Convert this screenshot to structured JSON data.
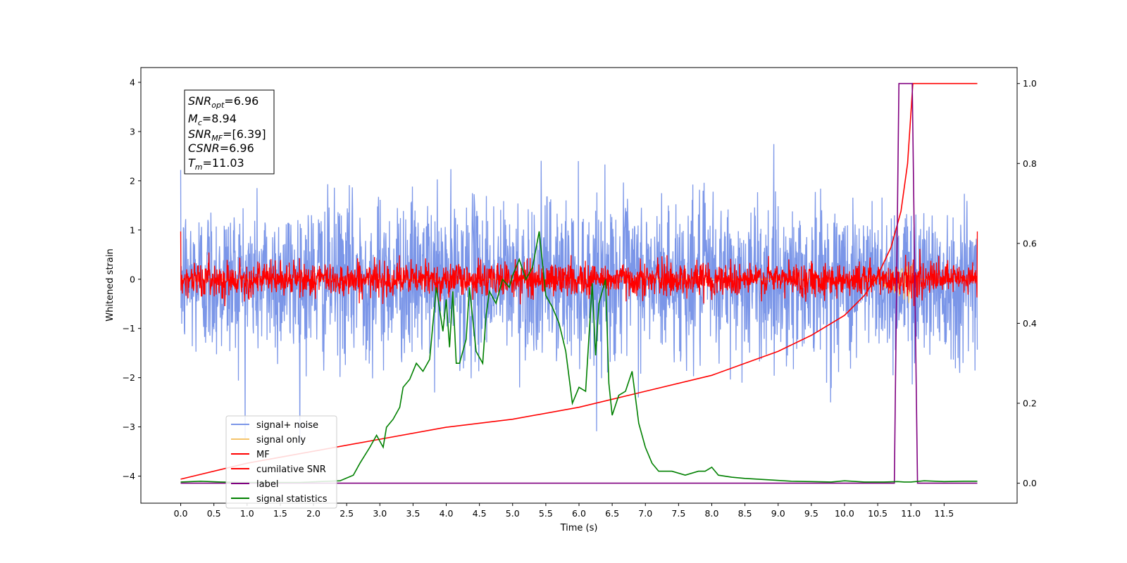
{
  "chart_data": {
    "type": "line",
    "xlabel": "Time (s)",
    "ylabel": "Whitened strain",
    "xlim": [
      -0.6,
      12.6
    ],
    "ylim": [
      -4.55,
      4.3
    ],
    "ylim_right": [
      -0.05,
      1.04
    ],
    "x_ticks": [
      0.0,
      0.5,
      1.0,
      1.5,
      2.0,
      2.5,
      3.0,
      3.5,
      4.0,
      4.5,
      5.0,
      5.5,
      6.0,
      6.5,
      7.0,
      7.5,
      8.0,
      8.5,
      9.0,
      9.5,
      10.0,
      10.5,
      11.0,
      11.5
    ],
    "x_tick_labels": [
      "0.0",
      "0.5",
      "1.0",
      "1.5",
      "2.0",
      "2.5",
      "3.0",
      "3.5",
      "4.0",
      "4.5",
      "5.0",
      "5.5",
      "6.0",
      "6.5",
      "7.0",
      "7.5",
      "8.0",
      "8.5",
      "9.0",
      "9.5",
      "10.0",
      "10.5",
      "11.0",
      "11.5"
    ],
    "y_ticks": [
      -4,
      -3,
      -2,
      -1,
      0,
      1,
      2,
      3,
      4
    ],
    "y_tick_labels": [
      "−4",
      "−3",
      "−2",
      "−1",
      "0",
      "1",
      "2",
      "3",
      "4"
    ],
    "y_right_ticks": [
      0.0,
      0.2,
      0.4,
      0.6,
      0.8,
      1.0
    ],
    "y_right_tick_labels": [
      "0.0",
      "0.2",
      "0.4",
      "0.6",
      "0.8",
      "1.0"
    ],
    "grid": false,
    "legend_position": "lower-left",
    "annotation": [
      {
        "base": "SNR",
        "sub": "opt",
        "value": "=6.96"
      },
      {
        "base": "M",
        "sub": "c",
        "value": "=8.94"
      },
      {
        "base": "SNR",
        "sub": "MF",
        "value": "=[6.39]"
      },
      {
        "base": "CSNR",
        "sub": "",
        "value": "=6.96"
      },
      {
        "base": "T",
        "sub": "m",
        "value": "=11.03"
      }
    ],
    "series": [
      {
        "name": "signal+ noise",
        "color": "#7b96e8",
        "axis": "left",
        "noise_sigma": 0.8,
        "x_range": [
          0.0,
          12.0
        ]
      },
      {
        "name": "signal only",
        "color": "#f5c36b",
        "axis": "left",
        "chirp_start": 10.2,
        "chirp_end": 11.03,
        "peak_amplitude": 0.55
      },
      {
        "name": "MF",
        "color": "#ff0000",
        "axis": "left",
        "noise_sigma": 0.17
      },
      {
        "name": "cumilative SNR",
        "color": "#ff0000",
        "axis": "right",
        "x": [
          0.0,
          1.0,
          2.0,
          3.0,
          4.0,
          5.0,
          6.0,
          7.0,
          8.0,
          9.0,
          9.5,
          10.0,
          10.3,
          10.5,
          10.7,
          10.85,
          10.95,
          11.03,
          11.5,
          12.0
        ],
        "values": [
          0.01,
          0.05,
          0.08,
          0.11,
          0.14,
          0.16,
          0.19,
          0.23,
          0.27,
          0.33,
          0.37,
          0.42,
          0.47,
          0.52,
          0.59,
          0.68,
          0.8,
          1.0,
          1.0,
          1.0
        ]
      },
      {
        "name": "label",
        "color": "#800080",
        "axis": "right",
        "x": [
          0.0,
          10.75,
          10.82,
          11.02,
          11.1,
          12.0
        ],
        "values": [
          0.0,
          0.0,
          1.0,
          1.0,
          0.0,
          0.0
        ]
      },
      {
        "name": "signal statistics",
        "color": "#008000",
        "axis": "right",
        "x": [
          0.0,
          0.3,
          0.6,
          0.9,
          1.2,
          1.5,
          1.8,
          2.1,
          2.4,
          2.6,
          2.7,
          2.85,
          2.95,
          3.05,
          3.1,
          3.2,
          3.3,
          3.35,
          3.45,
          3.5,
          3.55,
          3.65,
          3.75,
          3.85,
          3.95,
          4.0,
          4.05,
          4.1,
          4.15,
          4.2,
          4.3,
          4.35,
          4.45,
          4.55,
          4.6,
          4.65,
          4.75,
          4.85,
          4.95,
          5.0,
          5.1,
          5.2,
          5.3,
          5.4,
          5.45,
          5.5,
          5.6,
          5.7,
          5.8,
          5.9,
          6.0,
          6.1,
          6.2,
          6.25,
          6.3,
          6.4,
          6.45,
          6.5,
          6.6,
          6.7,
          6.8,
          6.9,
          7.0,
          7.1,
          7.2,
          7.4,
          7.6,
          7.8,
          7.9,
          8.0,
          8.1,
          8.3,
          8.5,
          8.7,
          8.9,
          9.2,
          9.5,
          9.8,
          10.0,
          10.3,
          10.6,
          10.8,
          10.9,
          11.0,
          11.2,
          11.5,
          11.8,
          12.0
        ],
        "values": [
          0.003,
          0.005,
          0.003,
          0.002,
          0.002,
          0.002,
          0.002,
          0.004,
          0.006,
          0.02,
          0.05,
          0.09,
          0.12,
          0.09,
          0.14,
          0.16,
          0.19,
          0.24,
          0.26,
          0.28,
          0.3,
          0.28,
          0.31,
          0.49,
          0.38,
          0.46,
          0.34,
          0.48,
          0.3,
          0.3,
          0.36,
          0.49,
          0.33,
          0.3,
          0.42,
          0.48,
          0.45,
          0.51,
          0.49,
          0.52,
          0.56,
          0.51,
          0.54,
          0.63,
          0.55,
          0.47,
          0.44,
          0.4,
          0.33,
          0.2,
          0.24,
          0.23,
          0.5,
          0.32,
          0.45,
          0.51,
          0.25,
          0.17,
          0.22,
          0.23,
          0.28,
          0.15,
          0.09,
          0.05,
          0.03,
          0.03,
          0.02,
          0.03,
          0.03,
          0.04,
          0.02,
          0.015,
          0.012,
          0.01,
          0.008,
          0.005,
          0.004,
          0.003,
          0.006,
          0.003,
          0.003,
          0.004,
          0.003,
          0.003,
          0.006,
          0.004,
          0.005,
          0.005
        ]
      }
    ]
  }
}
